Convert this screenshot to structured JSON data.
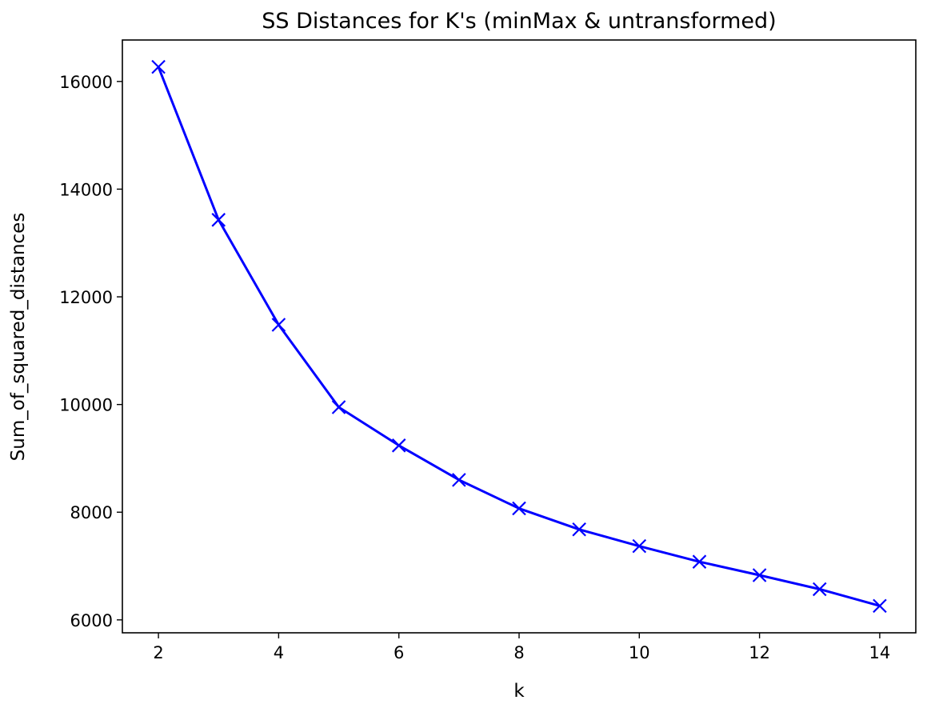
{
  "chart_data": {
    "type": "line",
    "title": "SS Distances for K's (minMax & untransformed)",
    "xlabel": "k",
    "ylabel": "Sum_of_squared_distances",
    "x": [
      2,
      3,
      4,
      5,
      6,
      7,
      8,
      9,
      10,
      11,
      12,
      13,
      14
    ],
    "series": [
      {
        "values": [
          16270,
          13430,
          11480,
          9950,
          9240,
          8600,
          8070,
          7680,
          7370,
          7080,
          6830,
          6570,
          6260
        ],
        "color": "#0000ff",
        "marker": "x"
      }
    ],
    "xlim": [
      1.4,
      14.6
    ],
    "ylim": [
      5760,
      16770
    ],
    "xticks": [
      2,
      4,
      6,
      8,
      10,
      12,
      14
    ],
    "yticks": [
      6000,
      8000,
      10000,
      12000,
      14000,
      16000
    ],
    "grid": false,
    "legend": "none"
  }
}
